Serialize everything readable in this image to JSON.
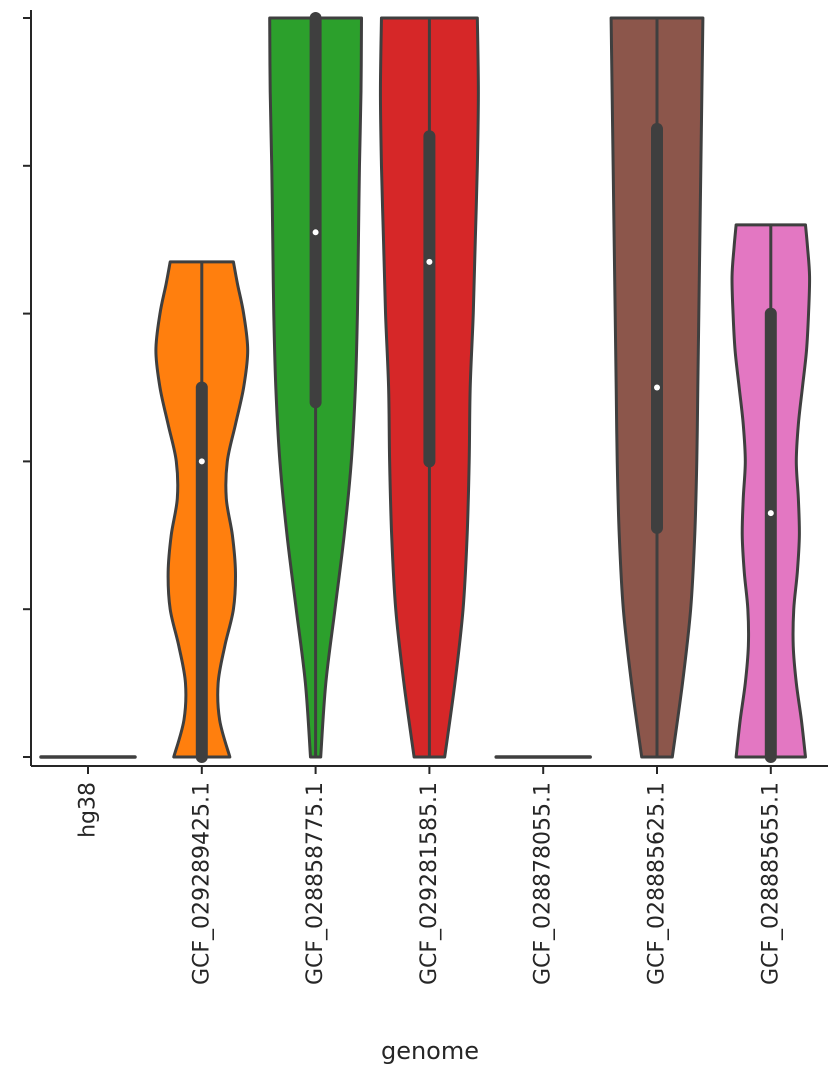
{
  "chart_data": {
    "type": "violin",
    "xlabel": "genome",
    "ylabel": "",
    "categories": [
      "hg38",
      "GCF_029289425.1",
      "GCF_028858775.1",
      "GCF_029281585.1",
      "GCF_028878055.1",
      "GCF_028885625.1",
      "GCF_028885655.1"
    ],
    "y_ticks": [
      0,
      1,
      2,
      3,
      4,
      5
    ],
    "y_tick_labels_visible": false,
    "ylim": [
      -0.02,
      5.05
    ],
    "cut": 0,
    "grid": false,
    "legend": "none",
    "series": [
      {
        "category": "hg38",
        "color": "#1f77b4",
        "min": 0,
        "q1": 0,
        "median": 0,
        "q3": 0,
        "max": 0,
        "density": [
          [
            0,
            1.0
          ]
        ]
      },
      {
        "category": "GCF_029289425.1",
        "color": "#ff7f0e",
        "min": 0,
        "q1": 0,
        "median": 2.0,
        "q3": 2.5,
        "max": 3.35,
        "density": [
          [
            0,
            0.55
          ],
          [
            0.25,
            0.35
          ],
          [
            0.5,
            0.32
          ],
          [
            0.75,
            0.45
          ],
          [
            1.0,
            0.62
          ],
          [
            1.25,
            0.66
          ],
          [
            1.5,
            0.6
          ],
          [
            1.75,
            0.48
          ],
          [
            2.0,
            0.5
          ],
          [
            2.25,
            0.66
          ],
          [
            2.5,
            0.82
          ],
          [
            2.75,
            0.9
          ],
          [
            3.0,
            0.82
          ],
          [
            3.2,
            0.7
          ],
          [
            3.35,
            0.62
          ]
        ]
      },
      {
        "category": "GCF_028858775.1",
        "color": "#2ca02c",
        "min": 0,
        "q1": 2.4,
        "median": 3.55,
        "q3": 5.0,
        "max": 5.0,
        "density": [
          [
            0,
            0.1
          ],
          [
            0.5,
            0.2
          ],
          [
            1.0,
            0.38
          ],
          [
            1.5,
            0.56
          ],
          [
            2.0,
            0.7
          ],
          [
            2.5,
            0.78
          ],
          [
            3.0,
            0.82
          ],
          [
            3.5,
            0.84
          ],
          [
            4.0,
            0.86
          ],
          [
            4.5,
            0.89
          ],
          [
            5.0,
            0.9
          ]
        ]
      },
      {
        "category": "GCF_029281585.1",
        "color": "#d62728",
        "min": 0,
        "q1": 2.0,
        "median": 3.35,
        "q3": 4.2,
        "max": 5.0,
        "density": [
          [
            0,
            0.3
          ],
          [
            0.5,
            0.5
          ],
          [
            1.0,
            0.66
          ],
          [
            1.5,
            0.74
          ],
          [
            2.0,
            0.78
          ],
          [
            2.5,
            0.8
          ],
          [
            3.0,
            0.86
          ],
          [
            3.5,
            0.9
          ],
          [
            4.0,
            0.94
          ],
          [
            4.5,
            0.96
          ],
          [
            5.0,
            0.94
          ]
        ]
      },
      {
        "category": "GCF_028878055.1",
        "color": "#9467bd",
        "min": 0,
        "q1": 0,
        "median": 0,
        "q3": 0,
        "max": 0,
        "density": [
          [
            0,
            1.0
          ]
        ]
      },
      {
        "category": "GCF_028885625.1",
        "color": "#8c564b",
        "min": 0,
        "q1": 1.55,
        "median": 2.5,
        "q3": 4.25,
        "max": 5.0,
        "density": [
          [
            0,
            0.3
          ],
          [
            0.5,
            0.5
          ],
          [
            1.0,
            0.66
          ],
          [
            1.5,
            0.74
          ],
          [
            2.0,
            0.78
          ],
          [
            2.5,
            0.8
          ],
          [
            3.0,
            0.82
          ],
          [
            3.5,
            0.84
          ],
          [
            4.0,
            0.86
          ],
          [
            4.5,
            0.88
          ],
          [
            5.0,
            0.9
          ]
        ]
      },
      {
        "category": "GCF_028885655.1",
        "color": "#e377c2",
        "min": 0,
        "q1": 0,
        "median": 1.65,
        "q3": 3.0,
        "max": 3.6,
        "density": [
          [
            0,
            0.68
          ],
          [
            0.25,
            0.6
          ],
          [
            0.5,
            0.5
          ],
          [
            0.75,
            0.44
          ],
          [
            1.0,
            0.45
          ],
          [
            1.25,
            0.52
          ],
          [
            1.5,
            0.56
          ],
          [
            1.75,
            0.54
          ],
          [
            2.0,
            0.5
          ],
          [
            2.25,
            0.54
          ],
          [
            2.5,
            0.62
          ],
          [
            2.75,
            0.7
          ],
          [
            3.0,
            0.74
          ],
          [
            3.25,
            0.76
          ],
          [
            3.45,
            0.72
          ],
          [
            3.6,
            0.68
          ]
        ]
      }
    ]
  }
}
